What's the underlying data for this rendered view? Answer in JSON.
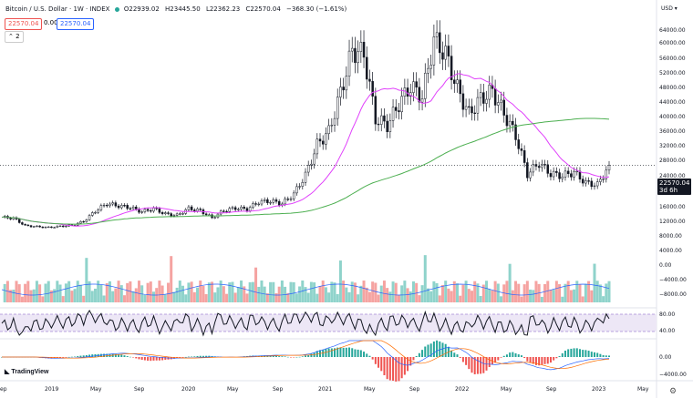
{
  "header": {
    "symbol": "Bitcoin / U.S. Dollar · 1W · INDEX",
    "open": "O22939.02",
    "high": "H23445.50",
    "low": "L22362.23",
    "close": "C22570.04",
    "change": "−368.30 (−1.61%)",
    "input_red": "22570.04",
    "input_zero": "0.00",
    "input_blue": "22570.04",
    "collapse": "2"
  },
  "price_axis": {
    "currency": "USD",
    "labels": [
      "64000.00",
      "60000.00",
      "56000.00",
      "52000.00",
      "48000.00",
      "44000.00",
      "40000.00",
      "36000.00",
      "32000.00",
      "28000.00",
      "24000.00",
      "16000.00",
      "12000.00",
      "8000.00"
    ],
    "current_price": "22570.04",
    "countdown": "3d 6h"
  },
  "volume_axis": {
    "labels": [
      "4000.00",
      "0.00",
      "−4000.00",
      "−8000.00"
    ]
  },
  "rsi_axis": {
    "labels": [
      "80.00",
      "40.00"
    ]
  },
  "macd_axis": {
    "labels": [
      "0.00",
      "−4000.00"
    ]
  },
  "time_axis": {
    "labels": [
      "2019",
      "May",
      "Sep",
      "2020",
      "May",
      "Sep",
      "2021",
      "May",
      "Sep",
      "2022",
      "May",
      "Sep",
      "2023",
      "May"
    ],
    "left_edge": "ep"
  },
  "branding": {
    "logo": "TradingView"
  },
  "colors": {
    "up": "#26a69a",
    "down": "#ef5350",
    "ma_long": "#4caf50",
    "ma_short": "#e040fb",
    "rsi_band": "#7e57c2",
    "current_price": "#131722"
  },
  "chart_data": {
    "type": "candlestick",
    "x": [
      "2018-09",
      "2018-10",
      "2018-11",
      "2018-12",
      "2019-01",
      "2019-02",
      "2019-03",
      "2019-04",
      "2019-05",
      "2019-06",
      "2019-07",
      "2019-08",
      "2019-09",
      "2019-10",
      "2019-11",
      "2019-12",
      "2020-01",
      "2020-02",
      "2020-03",
      "2020-04",
      "2020-05",
      "2020-06",
      "2020-07",
      "2020-08",
      "2020-09",
      "2020-10",
      "2020-11",
      "2020-12",
      "2021-01",
      "2021-02",
      "2021-03",
      "2021-04",
      "2021-05",
      "2021-06",
      "2021-07",
      "2021-08",
      "2021-09",
      "2021-10",
      "2021-11",
      "2021-12",
      "2022-01",
      "2022-02",
      "2022-03",
      "2022-04",
      "2022-05",
      "2022-06",
      "2022-07",
      "2022-08",
      "2022-09",
      "2022-10",
      "2022-11",
      "2022-12",
      "2023-01"
    ],
    "close": [
      6600,
      6300,
      4000,
      3700,
      3450,
      3800,
      4100,
      5300,
      8500,
      10800,
      10100,
      9600,
      8300,
      9200,
      7600,
      7200,
      9300,
      8600,
      6400,
      8600,
      9400,
      9100,
      11300,
      11600,
      10800,
      13800,
      19600,
      29000,
      33000,
      45000,
      58000,
      57000,
      37000,
      35000,
      41500,
      47000,
      43800,
      61300,
      57000,
      46300,
      38500,
      43200,
      45500,
      38600,
      31800,
      19900,
      23300,
      20000,
      19400,
      20500,
      17200,
      16600,
      22570
    ],
    "ylim": [
      0,
      68000
    ],
    "ma_short_note": "pink moving average",
    "ma_long_note": "green moving average"
  }
}
